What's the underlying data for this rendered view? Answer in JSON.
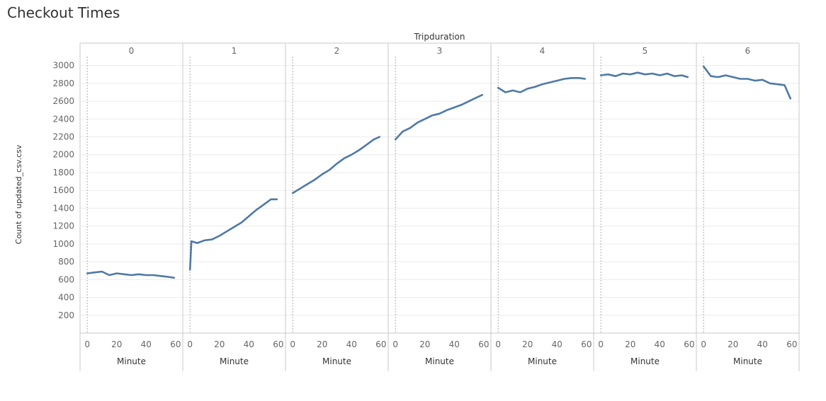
{
  "title": "Checkout Times",
  "colors": {
    "line": "#4e79a7",
    "axis_text": "#666666",
    "grid": "#ececec",
    "border": "#c8c8c8",
    "zero_line": "#9a9a9a"
  },
  "chart_data": {
    "type": "line",
    "title": "Checkout Times",
    "column_header": "Tripduration",
    "ylabel": "Count of updated_csv.csv",
    "xlabel": "Minute",
    "ylim": [
      0,
      3100
    ],
    "xlim": [
      -2,
      62
    ],
    "yticks": [
      "200",
      "400",
      "600",
      "800",
      "1000",
      "1200",
      "1400",
      "1600",
      "1800",
      "2000",
      "2200",
      "2400",
      "2600",
      "2800",
      "3000"
    ],
    "xticks": [
      "0",
      "20",
      "40",
      "60"
    ],
    "grid": true,
    "panels": [
      {
        "name": "0",
        "x": [
          0,
          5,
          10,
          15,
          20,
          25,
          30,
          35,
          40,
          45,
          50,
          55,
          59
        ],
        "y": [
          670,
          680,
          690,
          650,
          670,
          660,
          650,
          660,
          650,
          650,
          640,
          630,
          620
        ]
      },
      {
        "name": "1",
        "x": [
          0,
          1,
          5,
          10,
          15,
          20,
          25,
          30,
          35,
          40,
          45,
          50,
          55,
          59
        ],
        "y": [
          710,
          1030,
          1010,
          1040,
          1050,
          1090,
          1140,
          1190,
          1240,
          1310,
          1380,
          1440,
          1500,
          1500
        ]
      },
      {
        "name": "2",
        "x": [
          0,
          5,
          10,
          15,
          20,
          25,
          30,
          35,
          40,
          45,
          50,
          55,
          59
        ],
        "y": [
          1570,
          1620,
          1670,
          1720,
          1780,
          1830,
          1900,
          1960,
          2000,
          2050,
          2110,
          2170,
          2200
        ]
      },
      {
        "name": "3",
        "x": [
          0,
          5,
          10,
          15,
          20,
          25,
          30,
          35,
          40,
          45,
          50,
          55,
          59
        ],
        "y": [
          2170,
          2260,
          2300,
          2360,
          2400,
          2440,
          2460,
          2500,
          2530,
          2560,
          2600,
          2640,
          2670
        ]
      },
      {
        "name": "4",
        "x": [
          0,
          5,
          10,
          15,
          20,
          25,
          30,
          35,
          40,
          45,
          50,
          55,
          59
        ],
        "y": [
          2750,
          2700,
          2720,
          2700,
          2740,
          2760,
          2790,
          2810,
          2830,
          2850,
          2860,
          2860,
          2850
        ]
      },
      {
        "name": "5",
        "x": [
          0,
          5,
          10,
          15,
          20,
          25,
          30,
          35,
          40,
          45,
          50,
          55,
          59
        ],
        "y": [
          2890,
          2900,
          2880,
          2910,
          2900,
          2920,
          2900,
          2910,
          2890,
          2910,
          2880,
          2890,
          2870
        ]
      },
      {
        "name": "6",
        "x": [
          0,
          5,
          10,
          15,
          20,
          25,
          30,
          35,
          40,
          45,
          50,
          55,
          59
        ],
        "y": [
          2990,
          2880,
          2870,
          2890,
          2870,
          2850,
          2850,
          2830,
          2840,
          2800,
          2790,
          2780,
          2630
        ]
      }
    ]
  }
}
